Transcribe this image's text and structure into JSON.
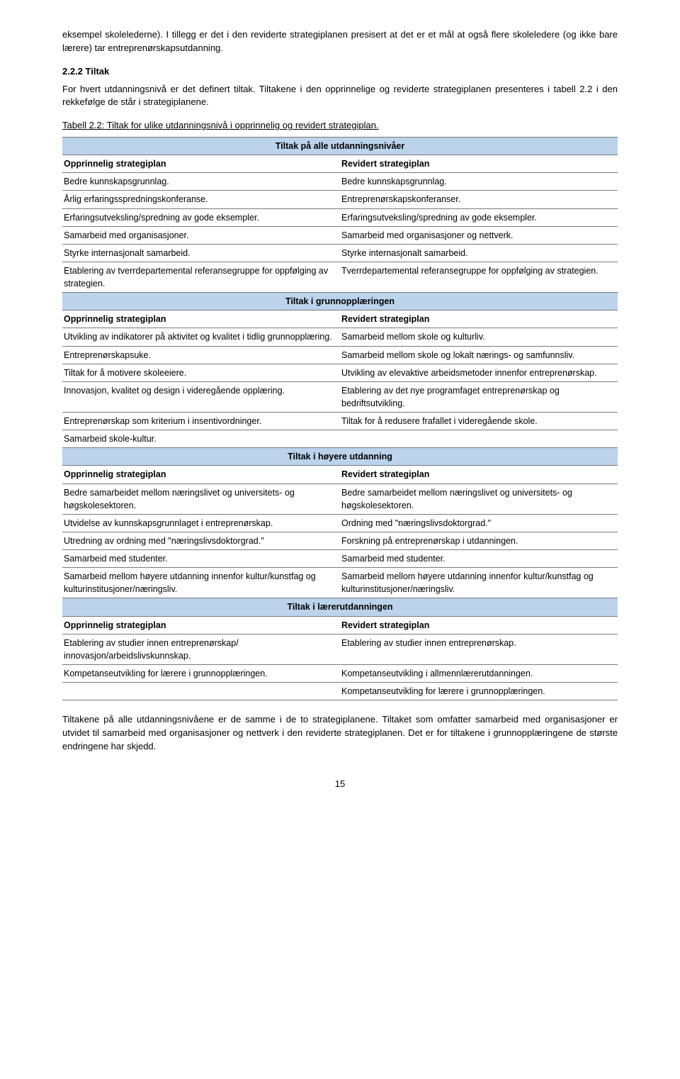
{
  "intro_para": "eksempel skolelederne). I tillegg er det i den reviderte strategiplanen presisert at det er et mål at også flere skoleledere (og ikke bare lærere) tar entreprenørskapsutdanning.",
  "section_number": "2.2.2  Tiltak",
  "section_para": "For hvert utdanningsnivå er det definert tiltak. Tiltakene i den opprinnelige og reviderte strategiplanen presenteres i tabell 2.2 i den rekkefølge de står i strategiplanene.",
  "table_caption": "Tabell 2.2: Tiltak for ulike utdanningsnivå i opprinnelig og revidert strategiplan.",
  "colors": {
    "section_bg": "#bcd3ec",
    "border": "#7a7a7a",
    "text": "#000000",
    "page_bg": "#ffffff"
  },
  "table": {
    "sections": [
      {
        "title": "Tiltak på alle utdanningsnivåer",
        "header": [
          "Opprinnelig strategiplan",
          "Revidert strategiplan"
        ],
        "rows": [
          [
            "Bedre kunnskapsgrunnlag.",
            "Bedre kunnskapsgrunnlag."
          ],
          [
            "Årlig erfaringsspredningskonferanse.",
            "Entreprenørskapskonferanser."
          ],
          [
            "Erfaringsutveksling/spredning av gode eksempler.",
            "Erfaringsutveksling/spredning av gode eksempler."
          ],
          [
            "Samarbeid med organisasjoner.",
            "Samarbeid med organisasjoner og nettverk."
          ],
          [
            "Styrke internasjonalt samarbeid.",
            "Styrke internasjonalt samarbeid."
          ],
          [
            "Etablering av tverrdepartemental referansegruppe for oppfølging av strategien.",
            "Tverrdepartemental referansegruppe for oppfølging av strategien."
          ]
        ]
      },
      {
        "title": "Tiltak i grunnopplæringen",
        "header": [
          "Opprinnelig strategiplan",
          "Revidert strategiplan"
        ],
        "rows": [
          [
            "Utvikling av indikatorer på aktivitet og kvalitet i tidlig grunnopplæring.",
            "Samarbeid mellom skole og kulturliv."
          ],
          [
            "Entreprenørskapsuke.",
            "Samarbeid mellom skole og lokalt nærings- og samfunnsliv."
          ],
          [
            "Tiltak for å motivere skoleeiere.",
            "Utvikling av elevaktive arbeidsmetoder innenfor entreprenørskap."
          ],
          [
            "Innovasjon, kvalitet og design i videregående opplæring.",
            "Etablering av det nye programfaget entreprenørskap og bedriftsutvikling."
          ],
          [
            "Entreprenørskap som kriterium i insentivordninger.",
            "Tiltak for å redusere frafallet i videregående skole."
          ],
          [
            "Samarbeid skole-kultur.",
            ""
          ]
        ]
      },
      {
        "title": "Tiltak i høyere utdanning",
        "header": [
          "Opprinnelig strategiplan",
          "Revidert strategiplan"
        ],
        "rows": [
          [
            "Bedre samarbeidet mellom næringslivet og universitets- og høgskolesektoren.",
            "Bedre samarbeidet mellom næringslivet og universitets- og høgskolesektoren."
          ],
          [
            "Utvidelse av kunnskapsgrunnlaget i entreprenørskap.",
            "Ordning med \"næringslivsdoktorgrad.\""
          ],
          [
            "Utredning av ordning med \"næringslivsdoktorgrad.\"",
            "Forskning på entreprenørskap i utdanningen."
          ],
          [
            "Samarbeid med studenter.",
            "Samarbeid med studenter."
          ],
          [
            "Samarbeid mellom høyere utdanning innenfor kultur/kunstfag og kulturinstitusjoner/næringsliv.",
            "Samarbeid mellom høyere utdanning innenfor kultur/kunstfag og kulturinstitusjoner/næringsliv."
          ]
        ]
      },
      {
        "title": "Tiltak i lærerutdanningen",
        "header": [
          "Opprinnelig strategiplan",
          "Revidert strategiplan"
        ],
        "rows": [
          [
            "Etablering av studier innen entreprenørskap/ innovasjon/arbeidslivskunnskap.",
            "Etablering av studier innen entreprenørskap."
          ],
          [
            "Kompetanseutvikling for lærere i grunnopplæringen.",
            "Kompetanseutvikling i allmennlærerutdanningen."
          ],
          [
            "",
            "Kompetanseutvikling for lærere i grunnopplæringen."
          ]
        ]
      }
    ]
  },
  "closing_para": "Tiltakene på alle utdanningsnivåene er de samme i de to strategiplanene. Tiltaket som omfatter samarbeid med organisasjoner er utvidet til samarbeid med organisasjoner og nettverk i den reviderte strategiplanen. Det er for tiltakene i grunnopplæringene de største endringene har skjedd.",
  "page_number": "15"
}
